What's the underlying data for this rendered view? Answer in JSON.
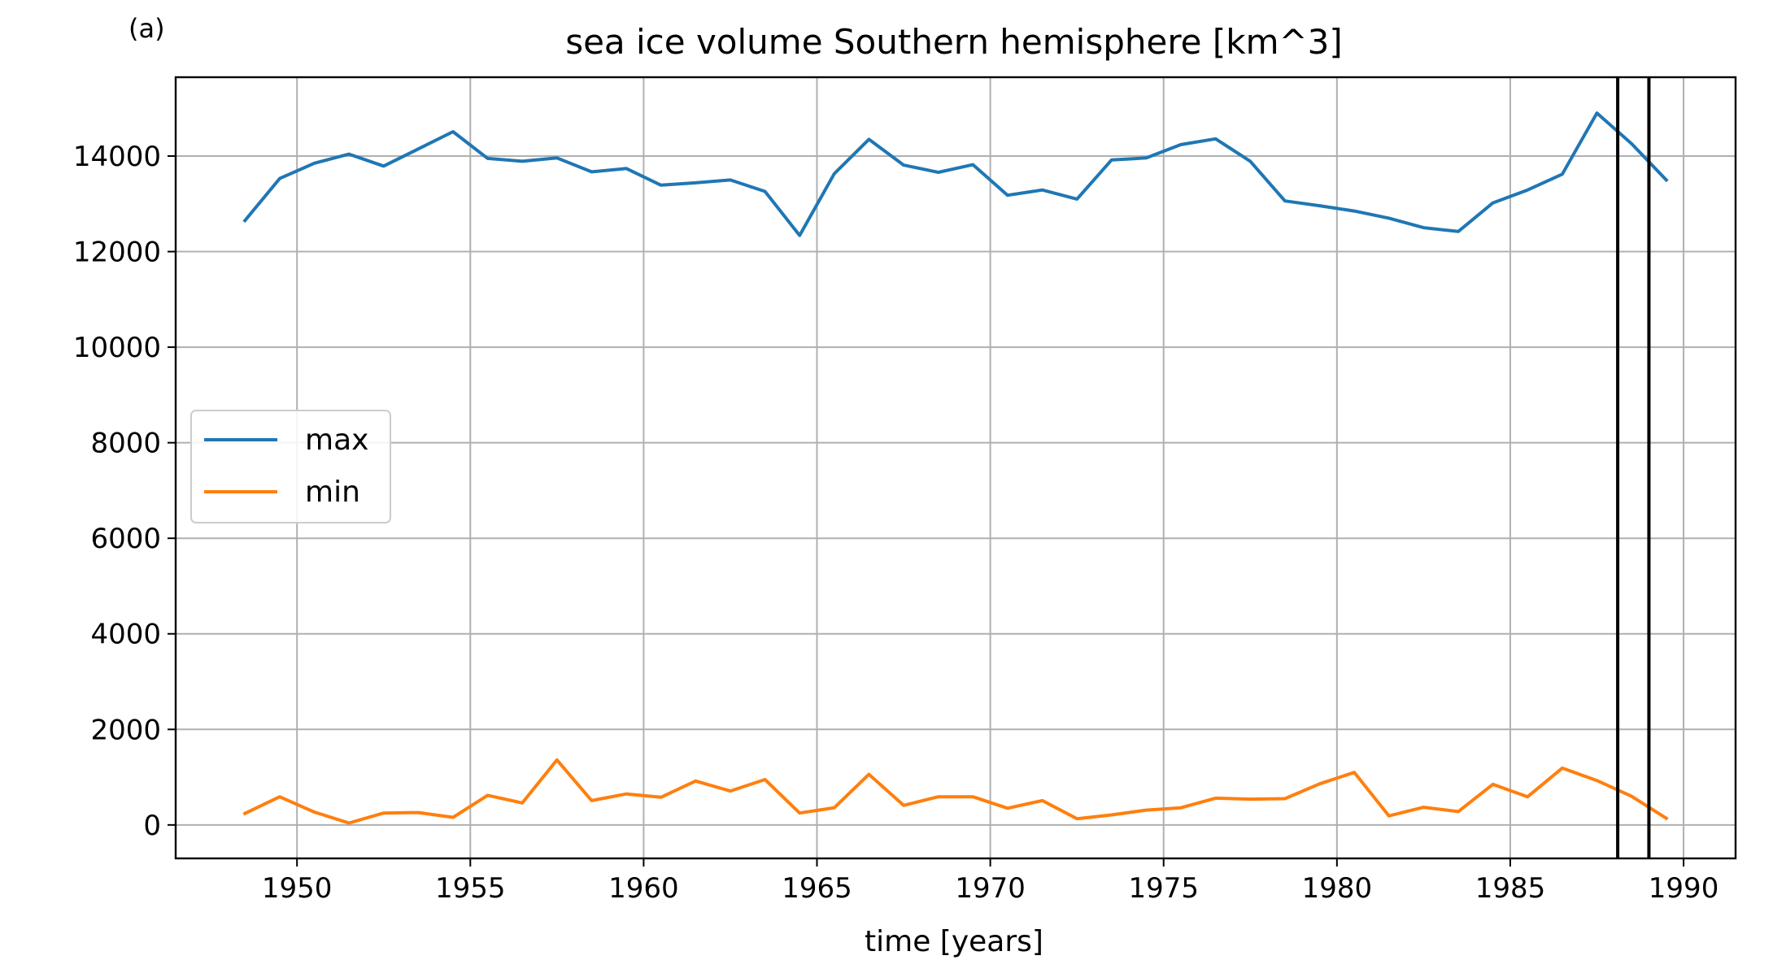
{
  "panel_label": "(a)",
  "chart_data": {
    "type": "line",
    "title": "sea ice volume Southern hemisphere [km^3]",
    "xlabel": "time [years]",
    "ylabel": "",
    "xlim": [
      1946.5,
      1991.5
    ],
    "ylim": [
      -700,
      15650
    ],
    "xticks": [
      1950,
      1955,
      1960,
      1965,
      1970,
      1975,
      1980,
      1985,
      1990
    ],
    "yticks": [
      0,
      2000,
      4000,
      6000,
      8000,
      10000,
      12000,
      14000
    ],
    "grid": true,
    "legend_position": "center-left",
    "vertical_lines": [
      1988.1,
      1989.0
    ],
    "x": [
      1948.5,
      1949.5,
      1950.5,
      1951.5,
      1952.5,
      1953.5,
      1954.5,
      1955.5,
      1956.5,
      1957.5,
      1958.5,
      1959.5,
      1960.5,
      1961.5,
      1962.5,
      1963.5,
      1964.5,
      1965.5,
      1966.5,
      1967.5,
      1968.5,
      1969.5,
      1970.5,
      1971.5,
      1972.5,
      1973.5,
      1974.5,
      1975.5,
      1976.5,
      1977.5,
      1978.5,
      1979.5,
      1980.5,
      1981.5,
      1982.5,
      1983.5,
      1984.5,
      1985.5,
      1986.5,
      1987.5,
      1988.5,
      1989.5
    ],
    "series": [
      {
        "name": "max",
        "color": "#1f77b4",
        "values": [
          12650,
          13530,
          13850,
          14040,
          13790,
          14150,
          14510,
          13950,
          13890,
          13960,
          13670,
          13740,
          13390,
          13440,
          13500,
          13260,
          12340,
          13630,
          14350,
          13810,
          13660,
          13820,
          13180,
          13290,
          13100,
          13920,
          13960,
          14240,
          14360,
          13890,
          13060,
          12960,
          12850,
          12700,
          12500,
          12420,
          13020,
          13290,
          13620,
          14900,
          14260,
          13500
        ]
      },
      {
        "name": "min",
        "color": "#ff7f0e",
        "values": [
          240,
          590,
          270,
          40,
          250,
          260,
          160,
          620,
          460,
          1360,
          510,
          650,
          580,
          920,
          710,
          950,
          250,
          360,
          1060,
          410,
          590,
          590,
          350,
          510,
          130,
          210,
          310,
          360,
          560,
          540,
          550,
          860,
          1100,
          190,
          370,
          280,
          850,
          590,
          1190,
          930,
          600,
          140
        ]
      }
    ]
  }
}
